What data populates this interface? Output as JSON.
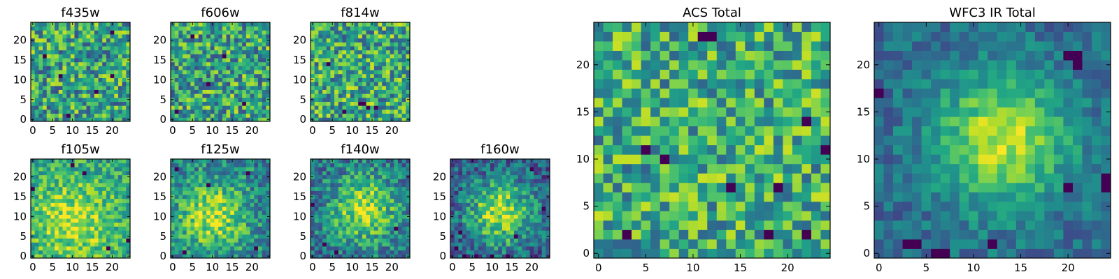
{
  "figure": {
    "colormap": "viridis",
    "colors": {
      "frame": "#000000",
      "background": "#ffffff",
      "low": "#440154",
      "high": "#fde725"
    },
    "grid": false
  },
  "chart_data": [
    {
      "type": "heatmap",
      "title": "f435w",
      "size": 25,
      "xticks": [
        "0",
        "5",
        "10",
        "15",
        "20"
      ],
      "yticks": [
        "0",
        "5",
        "10",
        "15",
        "20"
      ],
      "xlim": [
        0,
        25
      ],
      "ylim": [
        0,
        25
      ],
      "seed": 11,
      "center": [
        12,
        12
      ],
      "peak_boost": 0.0,
      "base": 0.58,
      "noise": 0.42,
      "radius": 6,
      "dark_pixels": [
        [
          16,
          7
        ],
        [
          7,
          11
        ],
        [
          20,
          11
        ],
        [
          9,
          1
        ],
        [
          3,
          16
        ],
        [
          20,
          22
        ]
      ]
    },
    {
      "type": "heatmap",
      "title": "f606w",
      "size": 25,
      "xticks": [
        "0",
        "5",
        "10",
        "15",
        "20"
      ],
      "yticks": [
        "0",
        "5",
        "10",
        "15",
        "20"
      ],
      "xlim": [
        0,
        25
      ],
      "ylim": [
        0,
        25
      ],
      "seed": 23,
      "center": [
        12,
        12
      ],
      "peak_boost": 0.0,
      "base": 0.58,
      "noise": 0.42,
      "radius": 6,
      "dark_pixels": [
        [
          1,
          2
        ],
        [
          9,
          9
        ],
        [
          13,
          16
        ],
        [
          5,
          21
        ],
        [
          18,
          4
        ]
      ]
    },
    {
      "type": "heatmap",
      "title": "f814w",
      "size": 25,
      "xticks": [
        "0",
        "5",
        "10",
        "15",
        "20"
      ],
      "yticks": [
        "0",
        "5",
        "10",
        "15",
        "20"
      ],
      "xlim": [
        0,
        25
      ],
      "ylim": [
        0,
        25
      ],
      "seed": 37,
      "center": [
        12,
        12
      ],
      "peak_boost": 0.0,
      "base": 0.6,
      "noise": 0.42,
      "radius": 6,
      "dark_pixels": [
        [
          12,
          4
        ],
        [
          13,
          4
        ],
        [
          14,
          3
        ],
        [
          16,
          3
        ],
        [
          8,
          2
        ],
        [
          4,
          14
        ]
      ]
    },
    {
      "type": "heatmap",
      "title": "f105w",
      "size": 25,
      "xticks": [
        "0",
        "5",
        "10",
        "15",
        "20"
      ],
      "yticks": [
        "0",
        "5",
        "10",
        "15",
        "20"
      ],
      "xlim": [
        0,
        25
      ],
      "ylim": [
        0,
        25
      ],
      "seed": 41,
      "center": [
        10,
        9
      ],
      "peak_boost": 0.35,
      "base": 0.55,
      "noise": 0.28,
      "radius": 8,
      "dark_pixels": [
        [
          0,
          17
        ],
        [
          10,
          23
        ],
        [
          13,
          21
        ],
        [
          24,
          4
        ],
        [
          19,
          2
        ]
      ]
    },
    {
      "type": "heatmap",
      "title": "f125w",
      "size": 25,
      "xticks": [
        "0",
        "5",
        "10",
        "15",
        "20"
      ],
      "yticks": [
        "0",
        "5",
        "10",
        "15",
        "20"
      ],
      "xlim": [
        0,
        25
      ],
      "ylim": [
        0,
        25
      ],
      "seed": 53,
      "center": [
        10,
        10
      ],
      "peak_boost": 0.45,
      "base": 0.45,
      "noise": 0.3,
      "radius": 6,
      "dark_pixels": [
        [
          1,
          22
        ],
        [
          21,
          2
        ],
        [
          3,
          1
        ],
        [
          9,
          18
        ],
        [
          19,
          21
        ]
      ]
    },
    {
      "type": "heatmap",
      "title": "f140w",
      "size": 25,
      "xticks": [
        "0",
        "5",
        "10",
        "15",
        "20"
      ],
      "yticks": [
        "0",
        "5",
        "10",
        "15",
        "20"
      ],
      "xlim": [
        0,
        25
      ],
      "ylim": [
        0,
        25
      ],
      "seed": 67,
      "center": [
        13,
        12
      ],
      "peak_boost": 0.5,
      "base": 0.38,
      "noise": 0.3,
      "radius": 6,
      "dark_pixels": [
        [
          3,
          3
        ],
        [
          0,
          13
        ],
        [
          21,
          7
        ],
        [
          6,
          1
        ]
      ]
    },
    {
      "type": "heatmap",
      "title": "f160w",
      "size": 25,
      "xticks": [
        "0",
        "5",
        "10",
        "15",
        "20"
      ],
      "yticks": [
        "0",
        "5",
        "10",
        "15",
        "20"
      ],
      "xlim": [
        0,
        25
      ],
      "ylim": [
        0,
        25
      ],
      "seed": 79,
      "center": [
        12,
        11
      ],
      "peak_boost": 0.6,
      "base": 0.28,
      "noise": 0.3,
      "radius": 6,
      "dark_pixels": [
        [
          3,
          0
        ],
        [
          6,
          0
        ],
        [
          10,
          0
        ],
        [
          2,
          6
        ],
        [
          16,
          5
        ],
        [
          20,
          22
        ],
        [
          1,
          2
        ],
        [
          23,
          12
        ],
        [
          14,
          0
        ]
      ]
    },
    {
      "type": "heatmap",
      "title": "ACS Total",
      "size": 25,
      "xticks": [
        "0",
        "5",
        "10",
        "15",
        "20"
      ],
      "yticks": [
        "0",
        "5",
        "10",
        "15",
        "20"
      ],
      "xlim": [
        0,
        25
      ],
      "ylim": [
        0,
        25
      ],
      "seed": 97,
      "center": [
        12,
        12
      ],
      "peak_boost": 0.0,
      "base": 0.62,
      "noise": 0.38,
      "radius": 6,
      "dark_pixels": [
        [
          11,
          23
        ],
        [
          12,
          23
        ],
        [
          5,
          11
        ],
        [
          7,
          10
        ],
        [
          14,
          7
        ],
        [
          18,
          2
        ],
        [
          22,
          2
        ],
        [
          24,
          11
        ],
        [
          22,
          14
        ],
        [
          19,
          7
        ],
        [
          3,
          2
        ]
      ]
    },
    {
      "type": "heatmap",
      "title": "WFC3 IR Total",
      "size": 25,
      "xticks": [
        "0",
        "5",
        "10",
        "15",
        "20"
      ],
      "yticks": [
        "0",
        "5",
        "10",
        "15",
        "20"
      ],
      "xlim": [
        0,
        25
      ],
      "ylim": [
        0,
        25
      ],
      "seed": 113,
      "center": [
        13,
        12
      ],
      "peak_boost": 0.55,
      "base": 0.35,
      "noise": 0.18,
      "radius": 5,
      "dark_pixels": [
        [
          20,
          21
        ],
        [
          21,
          21
        ],
        [
          21,
          20
        ],
        [
          0,
          17
        ],
        [
          3,
          1
        ],
        [
          6,
          0
        ],
        [
          7,
          0
        ],
        [
          12,
          1
        ],
        [
          20,
          7
        ],
        [
          24,
          8
        ],
        [
          24,
          7
        ],
        [
          4,
          1
        ]
      ]
    }
  ]
}
